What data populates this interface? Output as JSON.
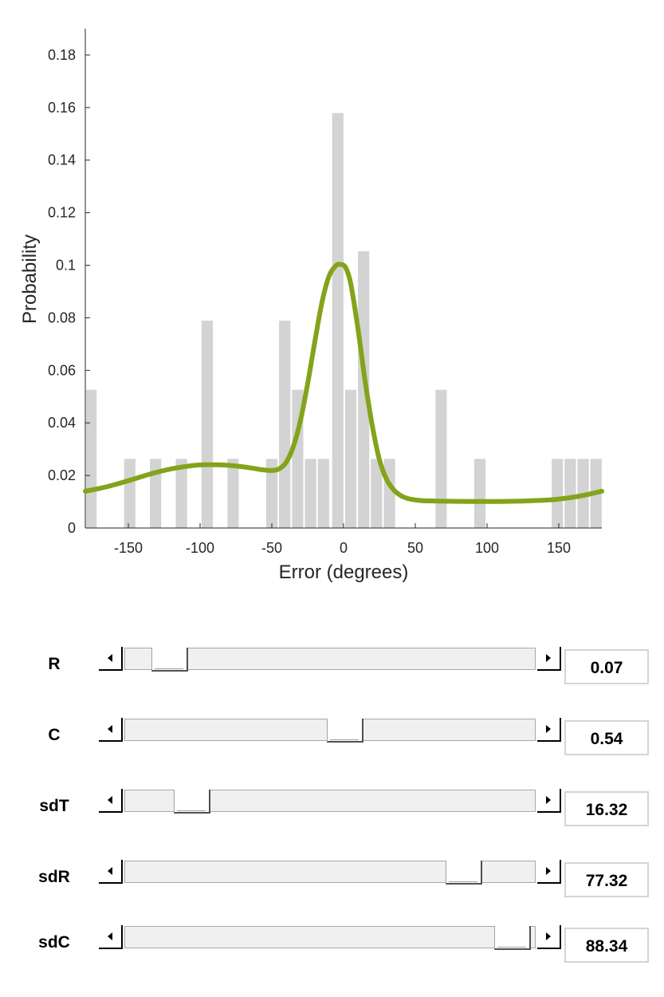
{
  "chart_data": {
    "type": "bar",
    "xlabel": "Error (degrees)",
    "ylabel": "Probability",
    "xlim": [
      -180,
      180
    ],
    "ylim": [
      0,
      0.19
    ],
    "xticks": [
      -150,
      -100,
      -50,
      0,
      50,
      100,
      150
    ],
    "yticks": [
      0,
      0.02,
      0.04,
      0.06,
      0.08,
      0.1,
      0.12,
      0.14,
      0.16,
      0.18
    ],
    "histogram": {
      "bin_width": 9,
      "color": "#d3d3d3",
      "bins": [
        {
          "x": -176,
          "y": 0.0526
        },
        {
          "x": -149,
          "y": 0.0263
        },
        {
          "x": -131,
          "y": 0.0263
        },
        {
          "x": -113,
          "y": 0.0263
        },
        {
          "x": -95,
          "y": 0.0789
        },
        {
          "x": -77,
          "y": 0.0263
        },
        {
          "x": -50,
          "y": 0.0263
        },
        {
          "x": -41,
          "y": 0.0789
        },
        {
          "x": -32,
          "y": 0.0526
        },
        {
          "x": -23,
          "y": 0.0263
        },
        {
          "x": -14,
          "y": 0.0263
        },
        {
          "x": -4,
          "y": 0.1579
        },
        {
          "x": 5,
          "y": 0.0526
        },
        {
          "x": 14,
          "y": 0.1053
        },
        {
          "x": 23,
          "y": 0.0263
        },
        {
          "x": 32,
          "y": 0.0263
        },
        {
          "x": 68,
          "y": 0.0526
        },
        {
          "x": 95,
          "y": 0.0263
        },
        {
          "x": 149,
          "y": 0.0263
        },
        {
          "x": 158,
          "y": 0.0263
        },
        {
          "x": 167,
          "y": 0.0263
        },
        {
          "x": 176,
          "y": 0.0263
        }
      ]
    },
    "curve": {
      "color": "#84a31b",
      "x": [
        -180,
        -165,
        -150,
        -135,
        -120,
        -105,
        -95,
        -85,
        -75,
        -65,
        -57,
        -50,
        -45,
        -40,
        -35,
        -30,
        -25,
        -20,
        -15,
        -10,
        -5,
        -2,
        0,
        2,
        5,
        10,
        15,
        20,
        25,
        30,
        35,
        40,
        45,
        50,
        55,
        60,
        70,
        90,
        100,
        120,
        140,
        150,
        165,
        180
      ],
      "y": [
        0.014,
        0.0157,
        0.018,
        0.0205,
        0.0225,
        0.0238,
        0.0241,
        0.024,
        0.0236,
        0.0229,
        0.0222,
        0.0219,
        0.0225,
        0.025,
        0.031,
        0.041,
        0.055,
        0.071,
        0.086,
        0.096,
        0.1,
        0.1003,
        0.1,
        0.0985,
        0.093,
        0.076,
        0.056,
        0.039,
        0.026,
        0.0185,
        0.0145,
        0.0123,
        0.0112,
        0.0107,
        0.0104,
        0.0103,
        0.0102,
        0.0101,
        0.0101,
        0.0102,
        0.0106,
        0.011,
        0.0122,
        0.014
      ]
    }
  },
  "sliders": [
    {
      "label": "R",
      "value": "0.07",
      "position": 0.07
    },
    {
      "label": "C",
      "value": "0.54",
      "position": 0.54
    },
    {
      "label": "sdT",
      "value": "16.32",
      "position": 0.13
    },
    {
      "label": "sdR",
      "value": "77.32",
      "position": 0.86
    },
    {
      "label": "sdC",
      "value": "88.34",
      "position": 0.99
    }
  ]
}
